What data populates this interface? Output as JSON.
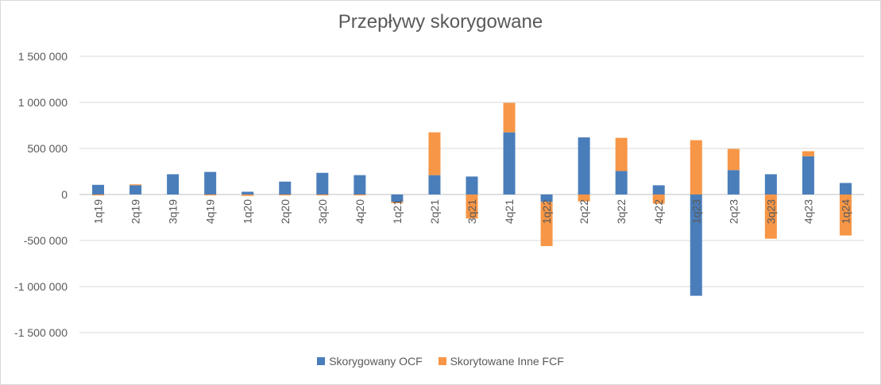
{
  "chart_data": {
    "type": "bar",
    "stacked": true,
    "title": "Przepływy skorygowane",
    "xlabel": "",
    "ylabel": "",
    "ylim": [
      -1500000,
      1500000
    ],
    "yticks": [
      1500000,
      1000000,
      500000,
      0,
      -500000,
      -1000000,
      -1500000
    ],
    "ytick_labels": [
      "1 500 000",
      "1 000 000",
      "500 000",
      "0",
      "-500 000",
      "-1 000 000",
      "-1 500 000"
    ],
    "grid": true,
    "legend_position": "bottom",
    "categories": [
      "1q19",
      "2q19",
      "3q19",
      "4q19",
      "1q20",
      "2q20",
      "3q20",
      "4q20",
      "1q21",
      "2q21",
      "3q21",
      "4q21",
      "1q22",
      "2q22",
      "3q22",
      "4q22",
      "1q23",
      "2q23",
      "3q23",
      "4q23",
      "1q24"
    ],
    "series": [
      {
        "name": "Skorygowany OCF",
        "color": "#4a7ebb",
        "values": [
          105000,
          100000,
          220000,
          245000,
          30000,
          140000,
          235000,
          210000,
          -80000,
          210000,
          195000,
          675000,
          -80000,
          620000,
          255000,
          100000,
          -1100000,
          265000,
          220000,
          415000,
          125000
        ]
      },
      {
        "name": "Skorytowane Inne FCF",
        "color": "#f79646",
        "values": [
          -10000,
          10000,
          0,
          -10000,
          -15000,
          -10000,
          -10000,
          -10000,
          -15000,
          465000,
          -260000,
          320000,
          -480000,
          -75000,
          360000,
          -100000,
          590000,
          230000,
          -480000,
          55000,
          -445000
        ]
      }
    ]
  }
}
